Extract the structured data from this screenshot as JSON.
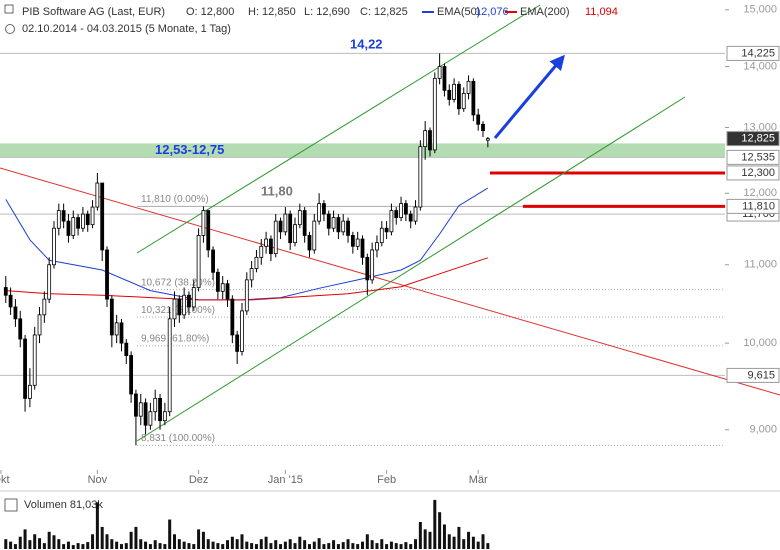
{
  "chart_data": {
    "type": "candlestick",
    "title": "PIB Software AG (Last, EUR)",
    "quote": [
      "O: 12,800",
      "H: 12,850",
      "L: 12,690",
      "C: 12,825"
    ],
    "subtitle": "02.10.2014 - 04.03.2015 (5 Monate, 1 Tag)",
    "log_scale": true,
    "ylim": [
      8.57,
      15.18
    ],
    "yticks": [
      {
        "value": 9,
        "label": "9,000"
      },
      {
        "value": 10,
        "label": "10,000"
      },
      {
        "value": 11,
        "label": "11,000"
      },
      {
        "value": 12,
        "label": "12,000"
      },
      {
        "value": 13,
        "label": "13,000"
      },
      {
        "value": 14,
        "label": "14,000"
      },
      {
        "value": 15,
        "label": "15,000"
      }
    ],
    "xlim": [
      -1.2,
      149.2
    ],
    "xticks": [
      {
        "value": -1,
        "label": "Okt"
      },
      {
        "value": 19,
        "label": "Nov"
      },
      {
        "value": 40,
        "label": "Dez"
      },
      {
        "value": 58,
        "label": "Jan '15"
      },
      {
        "value": 79,
        "label": "Feb"
      },
      {
        "value": 98,
        "label": "Mär"
      }
    ],
    "candle_color": "#000000",
    "candles": {
      "open": [
        10.7,
        10.6,
        10.45,
        10.3,
        10.05,
        9.35,
        9.5,
        10.1,
        10.35,
        10.55,
        11.0,
        11.5,
        11.75,
        11.6,
        11.4,
        11.65,
        11.5,
        11.7,
        11.55,
        11.8,
        12.15,
        11.2,
        10.55,
        10.1,
        10.25,
        10.0,
        9.85,
        9.4,
        9.15,
        9.3,
        9.05,
        9.2,
        9.35,
        9.1,
        9.2,
        10.3,
        10.55,
        10.35,
        10.6,
        10.45,
        10.7,
        11.4,
        11.75,
        11.2,
        10.9,
        10.65,
        10.75,
        10.55,
        10.1,
        9.9,
        10.4,
        10.8,
        10.95,
        11.1,
        11.25,
        11.35,
        11.15,
        11.6,
        11.45,
        11.7,
        11.3,
        11.55,
        11.75,
        11.4,
        11.2,
        11.6,
        11.85,
        11.7,
        11.5,
        11.65,
        11.45,
        11.6,
        11.4,
        11.25,
        11.35,
        11.1,
        10.8,
        11.2,
        11.3,
        11.5,
        11.45,
        11.75,
        11.65,
        11.85,
        11.7,
        11.6,
        11.8,
        12.7,
        12.95,
        12.65,
        13.8,
        14.0,
        13.6,
        13.45,
        13.7,
        13.3,
        13.55,
        13.75,
        13.2,
        13.05,
        12.8
      ],
      "high": [
        10.85,
        10.7,
        10.55,
        10.4,
        10.1,
        9.7,
        10.2,
        10.45,
        10.65,
        11.1,
        11.6,
        11.85,
        11.85,
        11.7,
        11.75,
        11.7,
        11.8,
        11.75,
        11.9,
        12.3,
        12.15,
        11.25,
        10.6,
        10.35,
        10.3,
        10.05,
        9.9,
        9.45,
        9.4,
        9.35,
        9.3,
        9.45,
        9.4,
        9.3,
        10.45,
        10.65,
        10.6,
        10.7,
        10.65,
        10.8,
        11.5,
        11.81,
        11.75,
        11.25,
        10.95,
        10.85,
        10.8,
        10.6,
        10.15,
        10.5,
        10.9,
        11.05,
        11.2,
        11.35,
        11.45,
        11.4,
        11.7,
        11.65,
        11.8,
        11.75,
        11.65,
        11.85,
        11.8,
        11.45,
        11.7,
        12.0,
        11.9,
        11.75,
        11.75,
        11.7,
        11.7,
        11.65,
        11.45,
        11.45,
        11.4,
        11.15,
        11.3,
        11.4,
        11.6,
        11.6,
        11.85,
        11.8,
        11.95,
        11.9,
        11.75,
        11.9,
        12.8,
        13.1,
        13.0,
        13.9,
        14.225,
        14.05,
        13.7,
        13.8,
        13.75,
        13.65,
        13.85,
        13.8,
        13.3,
        13.1,
        12.85
      ],
      "low": [
        10.5,
        10.35,
        10.2,
        9.95,
        9.2,
        9.25,
        9.45,
        10.0,
        10.25,
        10.5,
        10.95,
        11.4,
        11.5,
        11.3,
        11.35,
        11.4,
        11.45,
        11.45,
        11.5,
        11.75,
        11.05,
        10.45,
        9.95,
        10.0,
        9.9,
        9.75,
        9.3,
        8.831,
        9.05,
        8.95,
        9.0,
        9.1,
        9.0,
        9.05,
        9.15,
        10.2,
        10.25,
        10.3,
        10.35,
        10.4,
        10.65,
        11.3,
        11.1,
        10.8,
        10.55,
        10.55,
        10.45,
        10.0,
        9.75,
        9.85,
        10.35,
        10.7,
        10.9,
        11.0,
        11.15,
        11.05,
        11.1,
        11.35,
        11.4,
        11.2,
        11.25,
        11.5,
        11.3,
        11.1,
        11.15,
        11.55,
        11.6,
        11.4,
        11.45,
        11.35,
        11.4,
        11.3,
        11.15,
        11.2,
        11.0,
        10.6,
        10.75,
        11.1,
        11.25,
        11.35,
        11.4,
        11.55,
        11.6,
        11.6,
        11.5,
        11.55,
        11.75,
        12.5,
        12.55,
        12.6,
        13.7,
        13.5,
        13.35,
        13.4,
        13.2,
        13.25,
        13.45,
        13.1,
        12.95,
        12.85,
        12.69
      ],
      "close": [
        10.6,
        10.45,
        10.3,
        10.05,
        9.35,
        9.5,
        10.1,
        10.35,
        10.55,
        11.0,
        11.5,
        11.75,
        11.6,
        11.4,
        11.65,
        11.5,
        11.7,
        11.55,
        11.8,
        12.15,
        11.2,
        10.55,
        10.1,
        10.25,
        10.0,
        9.85,
        9.4,
        9.15,
        9.3,
        9.05,
        9.2,
        9.35,
        9.1,
        9.2,
        10.3,
        10.55,
        10.35,
        10.6,
        10.45,
        10.7,
        11.4,
        11.75,
        11.2,
        10.9,
        10.65,
        10.75,
        10.55,
        10.1,
        9.9,
        10.4,
        10.8,
        10.95,
        11.1,
        11.25,
        11.35,
        11.15,
        11.6,
        11.45,
        11.7,
        11.3,
        11.55,
        11.75,
        11.4,
        11.2,
        11.6,
        11.85,
        11.7,
        11.5,
        11.65,
        11.45,
        11.6,
        11.4,
        11.25,
        11.35,
        11.1,
        10.8,
        11.2,
        11.3,
        11.5,
        11.45,
        11.75,
        11.65,
        11.85,
        11.7,
        11.6,
        11.8,
        12.7,
        12.95,
        12.65,
        13.8,
        14.0,
        13.6,
        13.45,
        13.7,
        13.3,
        13.55,
        13.75,
        13.2,
        13.05,
        12.95,
        12.825
      ]
    },
    "series": [
      {
        "name": "EMA(50)",
        "color": "#1f3fd0",
        "last_label": "12,076",
        "x": [
          0,
          5,
          9,
          20,
          30,
          40,
          49,
          57,
          65,
          73,
          82,
          86,
          90,
          94,
          100
        ],
        "values": [
          11.91,
          11.34,
          11.06,
          10.93,
          10.66,
          10.54,
          10.54,
          10.57,
          10.69,
          10.8,
          10.93,
          11.06,
          11.42,
          11.82,
          12.076
        ]
      },
      {
        "name": "EMA(200)",
        "color": "#e00000",
        "last_label": "11,094",
        "x": [
          0,
          9,
          20,
          30,
          40,
          51,
          61,
          71,
          82,
          90,
          100
        ],
        "values": [
          10.66,
          10.62,
          10.6,
          10.57,
          10.54,
          10.54,
          10.58,
          10.62,
          10.71,
          10.88,
          11.094
        ]
      }
    ],
    "zone": {
      "from": 12.535,
      "to": 12.75,
      "label": "12,53-12,75",
      "color": "#b3dcb3"
    },
    "levels": [
      {
        "value": 14.225,
        "label": "14,225"
      },
      {
        "value": 12.825,
        "label": "12,825",
        "color": "#333333"
      },
      {
        "value": 12.535,
        "label": "12,535"
      },
      {
        "value": 12.3,
        "label": "12,300",
        "color": "#e00000"
      },
      {
        "value": 11.7,
        "label": "11,700"
      },
      {
        "value": 11.81,
        "label": "11,810",
        "color": "#e00000"
      },
      {
        "value": 9.615,
        "label": "9,615"
      }
    ],
    "fibonacci": [
      {
        "value": 11.81,
        "label": "11,810 (0.00%)"
      },
      {
        "value": 10.672,
        "label": "10,672 (38.20%)"
      },
      {
        "value": 10.321,
        "label": "10,321 (50.00%)"
      },
      {
        "value": 9.969,
        "label": "9,969 (61.80%)"
      },
      {
        "value": 8.831,
        "label": "8,831 (100.00%)"
      }
    ],
    "annotations": [
      "14,22",
      "11,80"
    ],
    "volume_title": "Volumen 81,03k",
    "volume_ylim": [
      0,
      110
    ],
    "volume": [
      20,
      15,
      10,
      25,
      40,
      18,
      30,
      22,
      12,
      35,
      28,
      20,
      10,
      15,
      8,
      12,
      10,
      14,
      30,
      95,
      45,
      30,
      20,
      15,
      10,
      12,
      35,
      45,
      20,
      15,
      10,
      18,
      12,
      10,
      60,
      30,
      20,
      15,
      12,
      10,
      40,
      35,
      20,
      15,
      12,
      10,
      18,
      25,
      20,
      30,
      15,
      12,
      10,
      20,
      25,
      12,
      18,
      10,
      15,
      20,
      12,
      25,
      18,
      10,
      15,
      22,
      10,
      12,
      18,
      10,
      14,
      20,
      12,
      10,
      15,
      30,
      18,
      12,
      20,
      10,
      15,
      12,
      10,
      14,
      10,
      20,
      55,
      40,
      35,
      100,
      75,
      50,
      30,
      25,
      45,
      20,
      35,
      25,
      15,
      30,
      12
    ]
  }
}
